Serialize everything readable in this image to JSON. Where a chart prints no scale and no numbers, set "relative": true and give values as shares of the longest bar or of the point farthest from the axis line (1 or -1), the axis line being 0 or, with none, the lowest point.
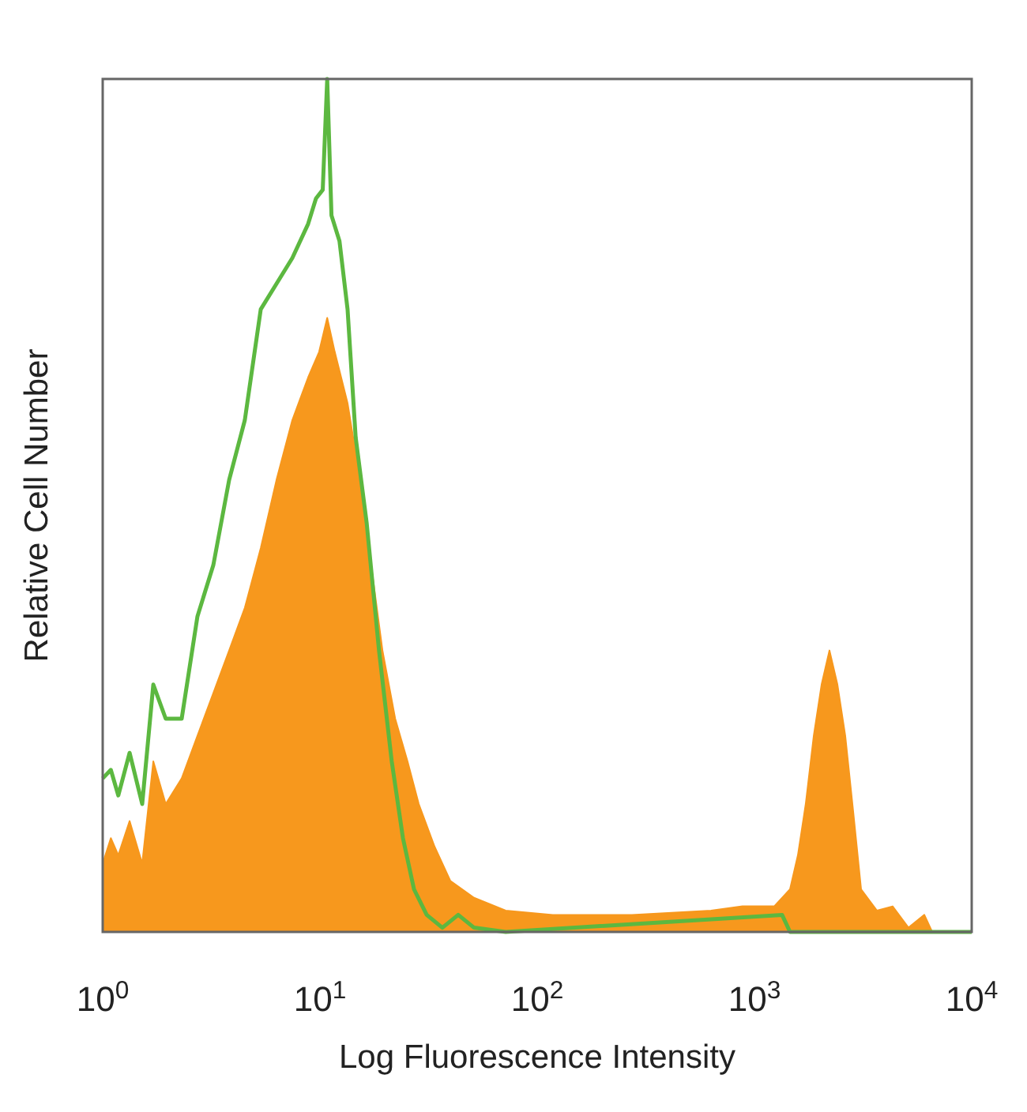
{
  "chart_data": {
    "type": "area",
    "xlabel": "Log Fluorescence Intensity",
    "ylabel": "Relative Cell Number",
    "relative": true,
    "log": "x",
    "xlim": [
      1,
      10000
    ],
    "xticks": [
      {
        "value": 1,
        "label": "10$^{0}$"
      },
      {
        "value": 10,
        "label": "10$^{1}$"
      },
      {
        "value": 100,
        "label": "10$^{2}$"
      },
      {
        "value": 1000,
        "label": "10$^{3}$"
      },
      {
        "value": 10000,
        "label": "10$^{4}$"
      }
    ],
    "grid": false,
    "series": [
      {
        "color": "#f7981d",
        "x": [
          1,
          1.09,
          1.18,
          1.33,
          1.52,
          1.71,
          1.95,
          2.31,
          2.73,
          3.23,
          3.82,
          4.51,
          5.34,
          6.31,
          7.46,
          8.82,
          9.91,
          10.8,
          11.7,
          13.4,
          15.3,
          17.2,
          19.4,
          22.2,
          25.3,
          28.5,
          33.7,
          39.8,
          51.2,
          71.6,
          118,
          273,
          631,
          881,
          1233,
          1458,
          1585,
          1722,
          1875,
          2037,
          2214,
          2410,
          2618,
          2851,
          3097,
          3664,
          4325,
          5117,
          6053,
          6577
        ],
        "values": [
          0.08,
          0.11,
          0.09,
          0.13,
          0.08,
          0.2,
          0.15,
          0.18,
          0.23,
          0.28,
          0.33,
          0.38,
          0.45,
          0.53,
          0.6,
          0.65,
          0.68,
          0.72,
          0.68,
          0.62,
          0.53,
          0.43,
          0.33,
          0.25,
          0.2,
          0.15,
          0.1,
          0.06,
          0.04,
          0.025,
          0.02,
          0.02,
          0.025,
          0.03,
          0.03,
          0.05,
          0.09,
          0.15,
          0.23,
          0.29,
          0.33,
          0.29,
          0.23,
          0.14,
          0.05,
          0.025,
          0.03,
          0.005,
          0.02,
          0
        ]
      },
      {
        "type": "line",
        "color": "#5cb840",
        "x": [
          1,
          1.09,
          1.18,
          1.33,
          1.52,
          1.71,
          1.95,
          2.31,
          2.73,
          3.23,
          3.82,
          4.51,
          5.34,
          6.31,
          7.46,
          8.82,
          9.59,
          10.3,
          10.8,
          11.3,
          12.3,
          13.4,
          14.6,
          16.4,
          18.7,
          21.4,
          24.1,
          27.1,
          31,
          36.6,
          43.3,
          51.2,
          71.6,
          1340,
          1458,
          10000
        ],
        "values": [
          0.18,
          0.19,
          0.16,
          0.21,
          0.15,
          0.29,
          0.25,
          0.25,
          0.37,
          0.43,
          0.53,
          0.6,
          0.73,
          0.76,
          0.79,
          0.83,
          0.86,
          0.87,
          1,
          0.84,
          0.81,
          0.73,
          0.58,
          0.48,
          0.33,
          0.2,
          0.11,
          0.05,
          0.02,
          0.005,
          0.02,
          0.005,
          0,
          0.02,
          0,
          0
        ]
      }
    ]
  }
}
